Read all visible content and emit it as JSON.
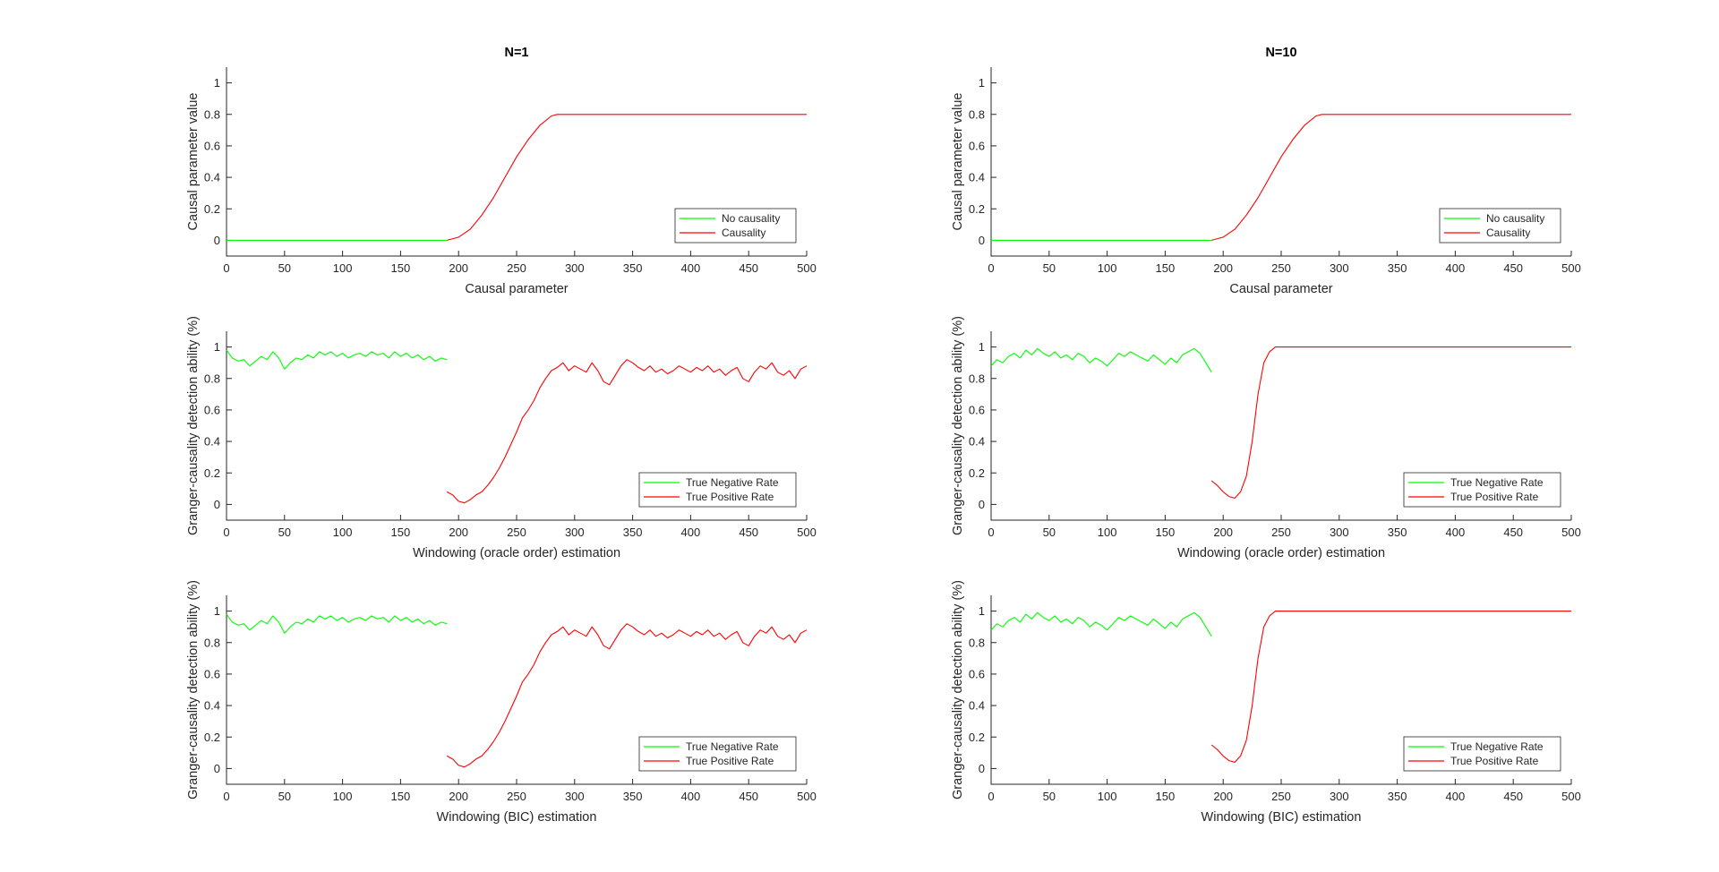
{
  "figure": {
    "background": "#ffffff"
  },
  "chart_data": [
    {
      "type": "line",
      "title": "N=1",
      "xlabel": "Causal parameter",
      "ylabel": "Causal parameter value",
      "xlim": [
        0,
        500
      ],
      "ylim": [
        -0.1,
        1.1
      ],
      "xticks": [
        0,
        50,
        100,
        150,
        200,
        250,
        300,
        350,
        400,
        450,
        500
      ],
      "yticks": [
        0,
        0.2,
        0.4,
        0.6,
        0.8,
        1
      ],
      "grid": false,
      "legend": "bottom-right",
      "series": [
        {
          "name": "No causality",
          "color": "#00ff00",
          "x": [
            0,
            190
          ],
          "y": [
            0,
            0
          ]
        },
        {
          "name": "Causality",
          "color": "#ff0000",
          "x": [
            190,
            200,
            210,
            220,
            230,
            240,
            250,
            260,
            270,
            280,
            285,
            300,
            350,
            400,
            450,
            500
          ],
          "y": [
            0.0,
            0.02,
            0.07,
            0.16,
            0.27,
            0.4,
            0.53,
            0.64,
            0.73,
            0.79,
            0.8,
            0.8,
            0.8,
            0.8,
            0.8,
            0.8
          ]
        }
      ]
    },
    {
      "type": "line",
      "title": "N=10",
      "xlabel": "Causal parameter",
      "ylabel": "Causal parameter value",
      "xlim": [
        0,
        500
      ],
      "ylim": [
        -0.1,
        1.1
      ],
      "xticks": [
        0,
        50,
        100,
        150,
        200,
        250,
        300,
        350,
        400,
        450,
        500
      ],
      "yticks": [
        0,
        0.2,
        0.4,
        0.6,
        0.8,
        1
      ],
      "grid": false,
      "legend": "bottom-right",
      "series": [
        {
          "name": "No causality",
          "color": "#00ff00",
          "x": [
            0,
            190
          ],
          "y": [
            0,
            0
          ]
        },
        {
          "name": "Causality",
          "color": "#ff0000",
          "x": [
            190,
            200,
            210,
            220,
            230,
            240,
            250,
            260,
            270,
            280,
            285,
            300,
            350,
            400,
            450,
            500
          ],
          "y": [
            0.0,
            0.02,
            0.07,
            0.16,
            0.27,
            0.4,
            0.53,
            0.64,
            0.73,
            0.79,
            0.8,
            0.8,
            0.8,
            0.8,
            0.8,
            0.8
          ]
        }
      ]
    },
    {
      "type": "line",
      "title": "",
      "xlabel": "Windowing (oracle order) estimation",
      "ylabel": "Granger-causality detection ability (%)",
      "xlim": [
        0,
        500
      ],
      "ylim": [
        -0.1,
        1.1
      ],
      "xticks": [
        0,
        50,
        100,
        150,
        200,
        250,
        300,
        350,
        400,
        450,
        500
      ],
      "yticks": [
        0,
        0.2,
        0.4,
        0.6,
        0.8,
        1
      ],
      "grid": false,
      "legend": "bottom-right",
      "series": [
        {
          "name": "True Negative Rate",
          "color": "#00ff00",
          "x": [
            0,
            5,
            10,
            15,
            20,
            25,
            30,
            35,
            40,
            45,
            50,
            55,
            60,
            65,
            70,
            75,
            80,
            85,
            90,
            95,
            100,
            105,
            110,
            115,
            120,
            125,
            130,
            135,
            140,
            145,
            150,
            155,
            160,
            165,
            170,
            175,
            180,
            185,
            190
          ],
          "y": [
            0.98,
            0.93,
            0.91,
            0.92,
            0.88,
            0.91,
            0.94,
            0.92,
            0.97,
            0.93,
            0.86,
            0.9,
            0.93,
            0.92,
            0.95,
            0.93,
            0.97,
            0.95,
            0.97,
            0.94,
            0.96,
            0.93,
            0.95,
            0.96,
            0.94,
            0.97,
            0.95,
            0.96,
            0.93,
            0.97,
            0.94,
            0.96,
            0.93,
            0.95,
            0.92,
            0.94,
            0.91,
            0.93,
            0.92
          ]
        },
        {
          "name": "True Positive Rate",
          "color": "#ff0000",
          "x": [
            190,
            195,
            200,
            205,
            210,
            215,
            220,
            225,
            230,
            235,
            240,
            245,
            250,
            255,
            260,
            265,
            270,
            275,
            280,
            285,
            290,
            295,
            300,
            305,
            310,
            315,
            320,
            325,
            330,
            335,
            340,
            345,
            350,
            355,
            360,
            365,
            370,
            375,
            380,
            385,
            390,
            395,
            400,
            405,
            410,
            415,
            420,
            425,
            430,
            435,
            440,
            445,
            450,
            455,
            460,
            465,
            470,
            475,
            480,
            485,
            490,
            495,
            500
          ],
          "y": [
            0.08,
            0.06,
            0.02,
            0.01,
            0.03,
            0.06,
            0.08,
            0.12,
            0.17,
            0.23,
            0.3,
            0.38,
            0.46,
            0.55,
            0.6,
            0.66,
            0.74,
            0.8,
            0.85,
            0.87,
            0.9,
            0.85,
            0.88,
            0.86,
            0.84,
            0.9,
            0.85,
            0.78,
            0.76,
            0.82,
            0.88,
            0.92,
            0.9,
            0.87,
            0.85,
            0.88,
            0.84,
            0.86,
            0.83,
            0.85,
            0.88,
            0.86,
            0.84,
            0.87,
            0.85,
            0.88,
            0.84,
            0.86,
            0.82,
            0.85,
            0.87,
            0.8,
            0.78,
            0.84,
            0.88,
            0.86,
            0.9,
            0.84,
            0.82,
            0.85,
            0.8,
            0.86,
            0.88
          ]
        }
      ]
    },
    {
      "type": "line",
      "title": "",
      "xlabel": "Windowing (oracle order) estimation",
      "ylabel": "Granger-causality detection ability (%)",
      "xlim": [
        0,
        500
      ],
      "ylim": [
        -0.1,
        1.1
      ],
      "xticks": [
        0,
        50,
        100,
        150,
        200,
        250,
        300,
        350,
        400,
        450,
        500
      ],
      "yticks": [
        0,
        0.2,
        0.4,
        0.6,
        0.8,
        1
      ],
      "grid": false,
      "legend": "bottom-right",
      "series": [
        {
          "name": "True Negative Rate",
          "color": "#00ff00",
          "x": [
            0,
            5,
            10,
            15,
            20,
            25,
            30,
            35,
            40,
            45,
            50,
            55,
            60,
            65,
            70,
            75,
            80,
            85,
            90,
            95,
            100,
            105,
            110,
            115,
            120,
            125,
            130,
            135,
            140,
            145,
            150,
            155,
            160,
            165,
            170,
            175,
            180,
            185,
            190
          ],
          "y": [
            0.88,
            0.92,
            0.9,
            0.94,
            0.96,
            0.93,
            0.98,
            0.95,
            0.99,
            0.96,
            0.94,
            0.97,
            0.93,
            0.95,
            0.92,
            0.96,
            0.94,
            0.9,
            0.93,
            0.91,
            0.88,
            0.92,
            0.96,
            0.94,
            0.97,
            0.95,
            0.93,
            0.91,
            0.95,
            0.92,
            0.89,
            0.93,
            0.9,
            0.95,
            0.97,
            0.99,
            0.96,
            0.9,
            0.84
          ]
        },
        {
          "name": "True Positive Rate",
          "color": "#ff0000",
          "x": [
            190,
            195,
            200,
            205,
            210,
            215,
            220,
            225,
            230,
            235,
            240,
            245,
            250,
            300,
            350,
            400,
            450,
            500
          ],
          "y": [
            0.15,
            0.12,
            0.08,
            0.05,
            0.04,
            0.08,
            0.18,
            0.4,
            0.7,
            0.9,
            0.97,
            1.0,
            1.0,
            1.0,
            1.0,
            1.0,
            1.0,
            1.0
          ]
        }
      ]
    },
    {
      "type": "line",
      "title": "",
      "xlabel": "Windowing (BIC) estimation",
      "ylabel": "Granger-causality detection ability (%)",
      "xlim": [
        0,
        500
      ],
      "ylim": [
        -0.1,
        1.1
      ],
      "xticks": [
        0,
        50,
        100,
        150,
        200,
        250,
        300,
        350,
        400,
        450,
        500
      ],
      "yticks": [
        0,
        0.2,
        0.4,
        0.6,
        0.8,
        1
      ],
      "grid": false,
      "legend": "bottom-right",
      "series": [
        {
          "name": "True Negative Rate",
          "color": "#00ff00",
          "x": [
            0,
            5,
            10,
            15,
            20,
            25,
            30,
            35,
            40,
            45,
            50,
            55,
            60,
            65,
            70,
            75,
            80,
            85,
            90,
            95,
            100,
            105,
            110,
            115,
            120,
            125,
            130,
            135,
            140,
            145,
            150,
            155,
            160,
            165,
            170,
            175,
            180,
            185,
            190
          ],
          "y": [
            0.98,
            0.93,
            0.91,
            0.92,
            0.88,
            0.91,
            0.94,
            0.92,
            0.97,
            0.93,
            0.86,
            0.9,
            0.93,
            0.92,
            0.95,
            0.93,
            0.97,
            0.95,
            0.97,
            0.94,
            0.96,
            0.93,
            0.95,
            0.96,
            0.94,
            0.97,
            0.95,
            0.96,
            0.93,
            0.97,
            0.94,
            0.96,
            0.93,
            0.95,
            0.92,
            0.94,
            0.91,
            0.93,
            0.92
          ]
        },
        {
          "name": "True Positive Rate",
          "color": "#ff0000",
          "x": [
            190,
            195,
            200,
            205,
            210,
            215,
            220,
            225,
            230,
            235,
            240,
            245,
            250,
            255,
            260,
            265,
            270,
            275,
            280,
            285,
            290,
            295,
            300,
            305,
            310,
            315,
            320,
            325,
            330,
            335,
            340,
            345,
            350,
            355,
            360,
            365,
            370,
            375,
            380,
            385,
            390,
            395,
            400,
            405,
            410,
            415,
            420,
            425,
            430,
            435,
            440,
            445,
            450,
            455,
            460,
            465,
            470,
            475,
            480,
            485,
            490,
            495,
            500
          ],
          "y": [
            0.08,
            0.06,
            0.02,
            0.01,
            0.03,
            0.06,
            0.08,
            0.12,
            0.17,
            0.23,
            0.3,
            0.38,
            0.46,
            0.55,
            0.6,
            0.66,
            0.74,
            0.8,
            0.85,
            0.87,
            0.9,
            0.85,
            0.88,
            0.86,
            0.84,
            0.9,
            0.85,
            0.78,
            0.76,
            0.82,
            0.88,
            0.92,
            0.9,
            0.87,
            0.85,
            0.88,
            0.84,
            0.86,
            0.83,
            0.85,
            0.88,
            0.86,
            0.84,
            0.87,
            0.85,
            0.88,
            0.84,
            0.86,
            0.82,
            0.85,
            0.87,
            0.8,
            0.78,
            0.84,
            0.88,
            0.86,
            0.9,
            0.84,
            0.82,
            0.85,
            0.8,
            0.86,
            0.88
          ]
        }
      ]
    },
    {
      "type": "line",
      "title": "",
      "xlabel": "Windowing (BIC) estimation",
      "ylabel": "Granger-causality detection ability (%)",
      "xlim": [
        0,
        500
      ],
      "ylim": [
        -0.1,
        1.1
      ],
      "xticks": [
        0,
        50,
        100,
        150,
        200,
        250,
        300,
        350,
        400,
        450,
        500
      ],
      "yticks": [
        0,
        0.2,
        0.4,
        0.6,
        0.8,
        1
      ],
      "grid": false,
      "legend": "bottom-right",
      "series": [
        {
          "name": "True Negative Rate",
          "color": "#00ff00",
          "x": [
            0,
            5,
            10,
            15,
            20,
            25,
            30,
            35,
            40,
            45,
            50,
            55,
            60,
            65,
            70,
            75,
            80,
            85,
            90,
            95,
            100,
            105,
            110,
            115,
            120,
            125,
            130,
            135,
            140,
            145,
            150,
            155,
            160,
            165,
            170,
            175,
            180,
            185,
            190
          ],
          "y": [
            0.88,
            0.92,
            0.9,
            0.94,
            0.96,
            0.93,
            0.98,
            0.95,
            0.99,
            0.96,
            0.94,
            0.97,
            0.93,
            0.95,
            0.92,
            0.96,
            0.94,
            0.9,
            0.93,
            0.91,
            0.88,
            0.92,
            0.96,
            0.94,
            0.97,
            0.95,
            0.93,
            0.91,
            0.95,
            0.92,
            0.89,
            0.93,
            0.9,
            0.95,
            0.97,
            0.99,
            0.96,
            0.9,
            0.84
          ]
        },
        {
          "name": "True Positive Rate",
          "color": "#ff0000",
          "x": [
            190,
            195,
            200,
            205,
            210,
            215,
            220,
            225,
            230,
            235,
            240,
            245,
            250,
            300,
            350,
            400,
            450,
            500
          ],
          "y": [
            0.15,
            0.12,
            0.08,
            0.05,
            0.04,
            0.08,
            0.18,
            0.4,
            0.7,
            0.9,
            0.97,
            1.0,
            1.0,
            1.0,
            1.0,
            1.0,
            1.0,
            1.0
          ]
        }
      ]
    }
  ]
}
